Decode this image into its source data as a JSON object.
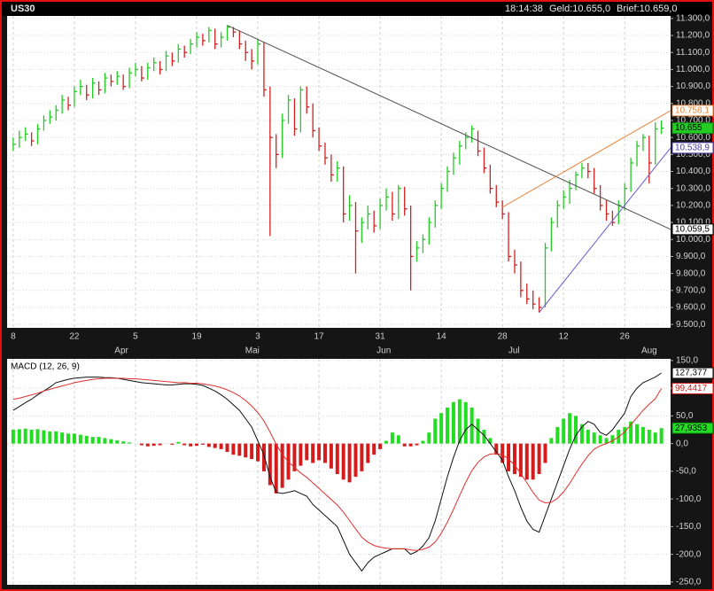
{
  "header": {
    "symbol": "US30",
    "time": "18:14:38",
    "bid": "Geld:10.655,0",
    "ask": "Brief:10.659,0"
  },
  "chart_data": [
    {
      "type": "ohlc",
      "title": "US30",
      "xlim": [
        -1,
        107.5
      ],
      "ylim": [
        9480,
        11315
      ],
      "yticks": [
        {
          "value": 11300,
          "label": "11.300,0"
        },
        {
          "value": 11200,
          "label": "11.200,0"
        },
        {
          "value": 11100,
          "label": "11.100,0"
        },
        {
          "value": 11000,
          "label": "11.000,0"
        },
        {
          "value": 10900,
          "label": "10.900,0"
        },
        {
          "value": 10800,
          "label": "10.800,0"
        },
        {
          "value": 10700,
          "label": "10.700,0"
        },
        {
          "value": 10600,
          "label": "10.600,0"
        },
        {
          "value": 10500,
          "label": "10.500,0"
        },
        {
          "value": 10400,
          "label": "10.400,0"
        },
        {
          "value": 10300,
          "label": "10.300,0"
        },
        {
          "value": 10200,
          "label": "10.200,0"
        },
        {
          "value": 10100,
          "label": "10.100,0"
        },
        {
          "value": 10000,
          "label": "10.000,0"
        },
        {
          "value": 9900,
          "label": "9.900,0"
        },
        {
          "value": 9800,
          "label": "9.800,0"
        },
        {
          "value": 9700,
          "label": "9.700,0"
        },
        {
          "value": 9600,
          "label": "9.600,0"
        },
        {
          "value": 9500,
          "label": "9.500,0"
        }
      ],
      "xticks": [
        {
          "value": 0,
          "label": "8"
        },
        {
          "value": 10,
          "label": "22"
        },
        {
          "value": 20,
          "label": "5"
        },
        {
          "value": 30,
          "label": "19"
        },
        {
          "value": 40,
          "label": "3"
        },
        {
          "value": 50,
          "label": "17"
        },
        {
          "value": 60,
          "label": "31"
        },
        {
          "value": 70,
          "label": "14"
        },
        {
          "value": 80,
          "label": "28"
        },
        {
          "value": 90,
          "label": "12"
        },
        {
          "value": 100,
          "label": "26"
        }
      ],
      "month_ticks": [
        {
          "value": 17.7,
          "label": "Apr"
        },
        {
          "value": 39.1,
          "label": "Mai"
        },
        {
          "value": 60.6,
          "label": "Jun"
        },
        {
          "value": 81.9,
          "label": "Jul"
        },
        {
          "value": 104,
          "label": "Aug"
        }
      ],
      "grid": true,
      "up_color": "#22cc22",
      "down_color": "#d42020",
      "high": [
        10600,
        10640,
        10660,
        10630,
        10680,
        10730,
        10760,
        10790,
        10850,
        10840,
        10900,
        10940,
        10910,
        10950,
        10930,
        10980,
        10970,
        10990,
        10970,
        11010,
        11040,
        11020,
        11040,
        11070,
        11050,
        11110,
        11100,
        11150,
        11140,
        11180,
        11220,
        11210,
        11250,
        11240,
        11220,
        11260,
        11250,
        11230,
        11170,
        11120,
        11180,
        11160,
        10900,
        10620,
        10740,
        10850,
        10830,
        10900,
        10900,
        10800,
        10660,
        10570,
        10500,
        10460,
        10430,
        10260,
        10220,
        10130,
        10200,
        10170,
        10240,
        10300,
        10280,
        10320,
        10310,
        10200,
        9990,
        10030,
        10130,
        10230,
        10330,
        10430,
        10510,
        10580,
        10630,
        10670,
        10640,
        10540,
        10440,
        10320,
        10230,
        10160,
        9940,
        9870,
        9740,
        9700,
        9660,
        9980,
        10130,
        10230,
        10290,
        10350,
        10400,
        10450,
        10450,
        10420,
        10320,
        10230,
        10170,
        10230,
        10330,
        10480,
        10580,
        10620,
        10610,
        10690,
        10700
      ],
      "low": [
        10520,
        10540,
        10580,
        10550,
        10560,
        10640,
        10680,
        10700,
        10740,
        10760,
        10780,
        10850,
        10820,
        10830,
        10850,
        10860,
        10900,
        10910,
        10880,
        10890,
        10960,
        10930,
        10940,
        10990,
        10970,
        10990,
        11020,
        11040,
        11070,
        11090,
        11130,
        11140,
        11160,
        11120,
        11130,
        11170,
        11190,
        11120,
        11050,
        11000,
        11030,
        10840,
        10020,
        10420,
        10480,
        10680,
        10610,
        10630,
        10740,
        10600,
        10520,
        10440,
        10340,
        10340,
        10100,
        10110,
        9800,
        9980,
        10060,
        10040,
        10060,
        10170,
        10110,
        10120,
        10140,
        9700,
        9870,
        9920,
        9970,
        10070,
        10180,
        10280,
        10380,
        10440,
        10530,
        10570,
        10490,
        10390,
        10270,
        10190,
        10120,
        9870,
        9800,
        9660,
        9620,
        9590,
        9570,
        9600,
        9930,
        10070,
        10180,
        10210,
        10290,
        10360,
        10360,
        10270,
        10170,
        10110,
        10080,
        10090,
        10170,
        10280,
        10430,
        10520,
        10330,
        10440,
        10620
      ],
      "close": [
        10560,
        10600,
        10620,
        10580,
        10650,
        10700,
        10720,
        10760,
        10820,
        10790,
        10870,
        10900,
        10850,
        10920,
        10880,
        10950,
        10930,
        10960,
        10900,
        10980,
        11000,
        10950,
        11010,
        11040,
        11000,
        11080,
        11050,
        11120,
        11100,
        11150,
        11190,
        11170,
        11230,
        11150,
        11190,
        11250,
        11220,
        11150,
        11100,
        11050,
        11150,
        10880,
        10600,
        10500,
        10700,
        10820,
        10650,
        10880,
        10780,
        10640,
        10550,
        10480,
        10380,
        10420,
        10150,
        10200,
        10050,
        10100,
        10150,
        10080,
        10200,
        10250,
        10150,
        10300,
        10180,
        9900,
        9950,
        10000,
        10100,
        10200,
        10300,
        10400,
        10480,
        10550,
        10600,
        10650,
        10520,
        10420,
        10300,
        10220,
        10150,
        9900,
        9850,
        9700,
        9650,
        9620,
        9600,
        9950,
        10100,
        10200,
        10250,
        10300,
        10380,
        10420,
        10400,
        10300,
        10200,
        10150,
        10100,
        10200,
        10300,
        10450,
        10550,
        10600,
        10450,
        10650,
        10655
      ],
      "trendlines": [
        {
          "x": [
            35,
            107.5
          ],
          "y": [
            11260,
            10059.5
          ],
          "color": "#505050"
        },
        {
          "x": [
            80,
            107.5
          ],
          "y": [
            10190,
            10758.1
          ],
          "color": "#e8843a"
        },
        {
          "x": [
            86,
            107.5
          ],
          "y": [
            9570,
            10538.9
          ],
          "color": "#6a5acd"
        }
      ],
      "levels": [
        {
          "value": 10758.1,
          "label": "10.758,1",
          "color": "#e8843a",
          "fill": "#ffffff"
        },
        {
          "value": 10655,
          "label": "10.655",
          "color": "#108010",
          "fill": "#22cc22"
        },
        {
          "value": 10538.9,
          "label": "10.538,9",
          "color": "#4b3aa8",
          "fill": "#ffffff"
        },
        {
          "value": 10059.5,
          "label": "10.059,5",
          "color": "#000000",
          "fill": "#ffffff"
        }
      ]
    },
    {
      "type": "macd",
      "title": "MACD (12, 26, 9)",
      "xlim": [
        -1,
        107.5
      ],
      "ylim": [
        -255,
        153
      ],
      "yticks": [
        {
          "value": 150,
          "label": "150,0"
        },
        {
          "value": 100,
          "label": "100,0"
        },
        {
          "value": 50,
          "label": "50,0"
        },
        {
          "value": 0,
          "label": "0,0"
        },
        {
          "value": -50,
          "label": "-50,0"
        },
        {
          "value": -100,
          "label": "-100,0"
        },
        {
          "value": -150,
          "label": "-150,0"
        },
        {
          "value": -200,
          "label": "-200,0"
        },
        {
          "value": -250,
          "label": "-250,0"
        }
      ],
      "grid": true,
      "series": [
        {
          "color": "#111111",
          "values": [
            60,
            67,
            74,
            80,
            88,
            95,
            102,
            110,
            113,
            116,
            118,
            119,
            120,
            120,
            120,
            119,
            119,
            118,
            116,
            114,
            112,
            110,
            109,
            108,
            107,
            106,
            106,
            107,
            108,
            108,
            107,
            105,
            100,
            95,
            88,
            80,
            70,
            60,
            45,
            30,
            5,
            -20,
            -60,
            -88,
            -90,
            -88,
            -85,
            -90,
            -95,
            -110,
            -120,
            -130,
            -140,
            -150,
            -175,
            -200,
            -215,
            -230,
            -215,
            -205,
            -200,
            -195,
            -190,
            -190,
            -190,
            -200,
            -195,
            -185,
            -170,
            -140,
            -100,
            -60,
            -25,
            5,
            25,
            35,
            25,
            15,
            0,
            -15,
            -30,
            -60,
            -85,
            -115,
            -140,
            -155,
            -160,
            -130,
            -100,
            -70,
            -40,
            -10,
            15,
            30,
            40,
            35,
            20,
            15,
            25,
            40,
            55,
            85,
            100,
            110,
            115,
            120,
            127.377
          ]
        },
        {
          "color": "#e03030",
          "values": [
            80,
            82,
            85,
            88,
            91,
            95,
            98,
            101,
            104,
            107,
            110,
            112,
            114,
            116,
            117,
            118,
            118,
            118,
            118,
            117,
            117,
            116,
            115,
            114,
            113,
            112,
            111,
            110,
            110,
            109,
            109,
            108,
            106,
            104,
            101,
            97,
            92,
            86,
            78,
            68,
            56,
            41,
            21,
            -1,
            -19,
            -33,
            -43,
            -53,
            -61,
            -71,
            -81,
            -91,
            -101,
            -111,
            -124,
            -139,
            -154,
            -169,
            -178,
            -184,
            -187,
            -189,
            -190,
            -190,
            -190,
            -192,
            -193,
            -191,
            -187,
            -178,
            -162,
            -142,
            -119,
            -94,
            -70,
            -49,
            -34,
            -24,
            -19,
            -18,
            -20,
            -28,
            -39,
            -54,
            -71,
            -88,
            -102,
            -107,
            -106,
            -99,
            -87,
            -72,
            -54,
            -37,
            -22,
            -10,
            -4,
            0,
            5,
            12,
            21,
            34,
            47,
            60,
            71,
            81,
            99.4417
          ]
        }
      ],
      "histogram": {
        "up_color": "#22dd22",
        "down_color": "#d41c1c",
        "values": [
          25,
          26,
          27,
          25,
          26,
          24,
          22,
          22,
          20,
          18,
          18,
          16,
          14,
          12,
          12,
          10,
          8,
          6,
          4,
          2,
          0,
          -3,
          -5,
          -4,
          -3,
          0,
          -2,
          3,
          -3,
          -5,
          -4,
          -2,
          -6,
          -8,
          -10,
          -15,
          -20,
          -22,
          -25,
          -28,
          -32,
          -50,
          -75,
          -90,
          -80,
          -65,
          -50,
          -40,
          -30,
          -35,
          -30,
          -35,
          -45,
          -55,
          -65,
          -70,
          -60,
          -50,
          -35,
          -20,
          -10,
          5,
          20,
          15,
          -5,
          -5,
          -3,
          5,
          20,
          45,
          55,
          65,
          75,
          80,
          75,
          65,
          45,
          25,
          10,
          -20,
          -35,
          -50,
          -55,
          -60,
          -65,
          -65,
          -55,
          -35,
          10,
          30,
          45,
          55,
          50,
          35,
          25,
          20,
          15,
          10,
          15,
          25,
          30,
          40,
          35,
          30,
          25,
          20,
          27.9353
        ]
      },
      "levels": [
        {
          "value": 127.377,
          "label": "127,377",
          "color": "#000000",
          "fill": "#ffffff"
        },
        {
          "value": 99.4417,
          "label": "99,4417",
          "color": "#d41c1c",
          "fill": "#ffffff"
        },
        {
          "value": 27.9353,
          "label": "27,9353",
          "color": "#0a600a",
          "fill": "#22dd22"
        }
      ]
    }
  ]
}
